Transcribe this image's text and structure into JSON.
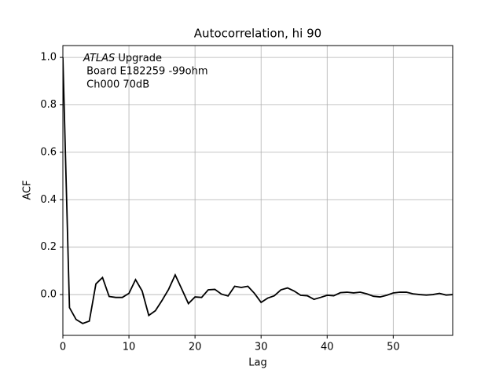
{
  "chart_data": {
    "type": "line",
    "title": "Autocorrelation, hi 90",
    "x_label": "Lag",
    "y_label": "ACF",
    "annotation": {
      "emphasis": "ATLAS",
      "lines": [
        " Upgrade",
        " Board E182259 -99ohm",
        " Ch000 70dB"
      ]
    },
    "x": [
      0,
      1,
      2,
      3,
      4,
      5,
      6,
      7,
      8,
      9,
      10,
      11,
      12,
      13,
      14,
      15,
      16,
      17,
      18,
      19,
      20,
      21,
      22,
      23,
      24,
      25,
      26,
      27,
      28,
      29,
      30,
      31,
      32,
      33,
      34,
      35,
      36,
      37,
      38,
      39,
      40,
      41,
      42,
      43,
      44,
      45,
      46,
      47,
      48,
      49,
      50,
      51,
      52,
      53,
      54,
      55,
      56,
      57,
      58,
      59
    ],
    "values": [
      1.0,
      -0.055,
      -0.105,
      -0.122,
      -0.112,
      0.045,
      0.072,
      -0.008,
      -0.012,
      -0.012,
      0.005,
      0.063,
      0.015,
      -0.088,
      -0.068,
      -0.025,
      0.022,
      0.083,
      0.023,
      -0.038,
      -0.01,
      -0.012,
      0.02,
      0.022,
      0.002,
      -0.006,
      0.035,
      0.03,
      0.035,
      0.005,
      -0.033,
      -0.015,
      -0.005,
      0.02,
      0.028,
      0.015,
      -0.003,
      -0.005,
      -0.02,
      -0.012,
      -0.003,
      -0.005,
      0.008,
      0.01,
      0.007,
      0.01,
      0.003,
      -0.007,
      -0.01,
      -0.003,
      0.007,
      0.01,
      0.01,
      0.003,
      0.0,
      -0.002,
      0.0,
      0.005,
      -0.002,
      0.0
    ],
    "color": "#000000",
    "xlim": [
      0,
      59
    ],
    "ylim": [
      -0.172,
      1.05
    ],
    "xticks": [
      0,
      10,
      20,
      30,
      40,
      50
    ],
    "yticks": [
      {
        "value": 0,
        "label": "0.0"
      },
      0.2,
      0.4,
      0.6,
      0.8,
      {
        "value": 1,
        "label": "1.0"
      }
    ],
    "grid": true
  }
}
